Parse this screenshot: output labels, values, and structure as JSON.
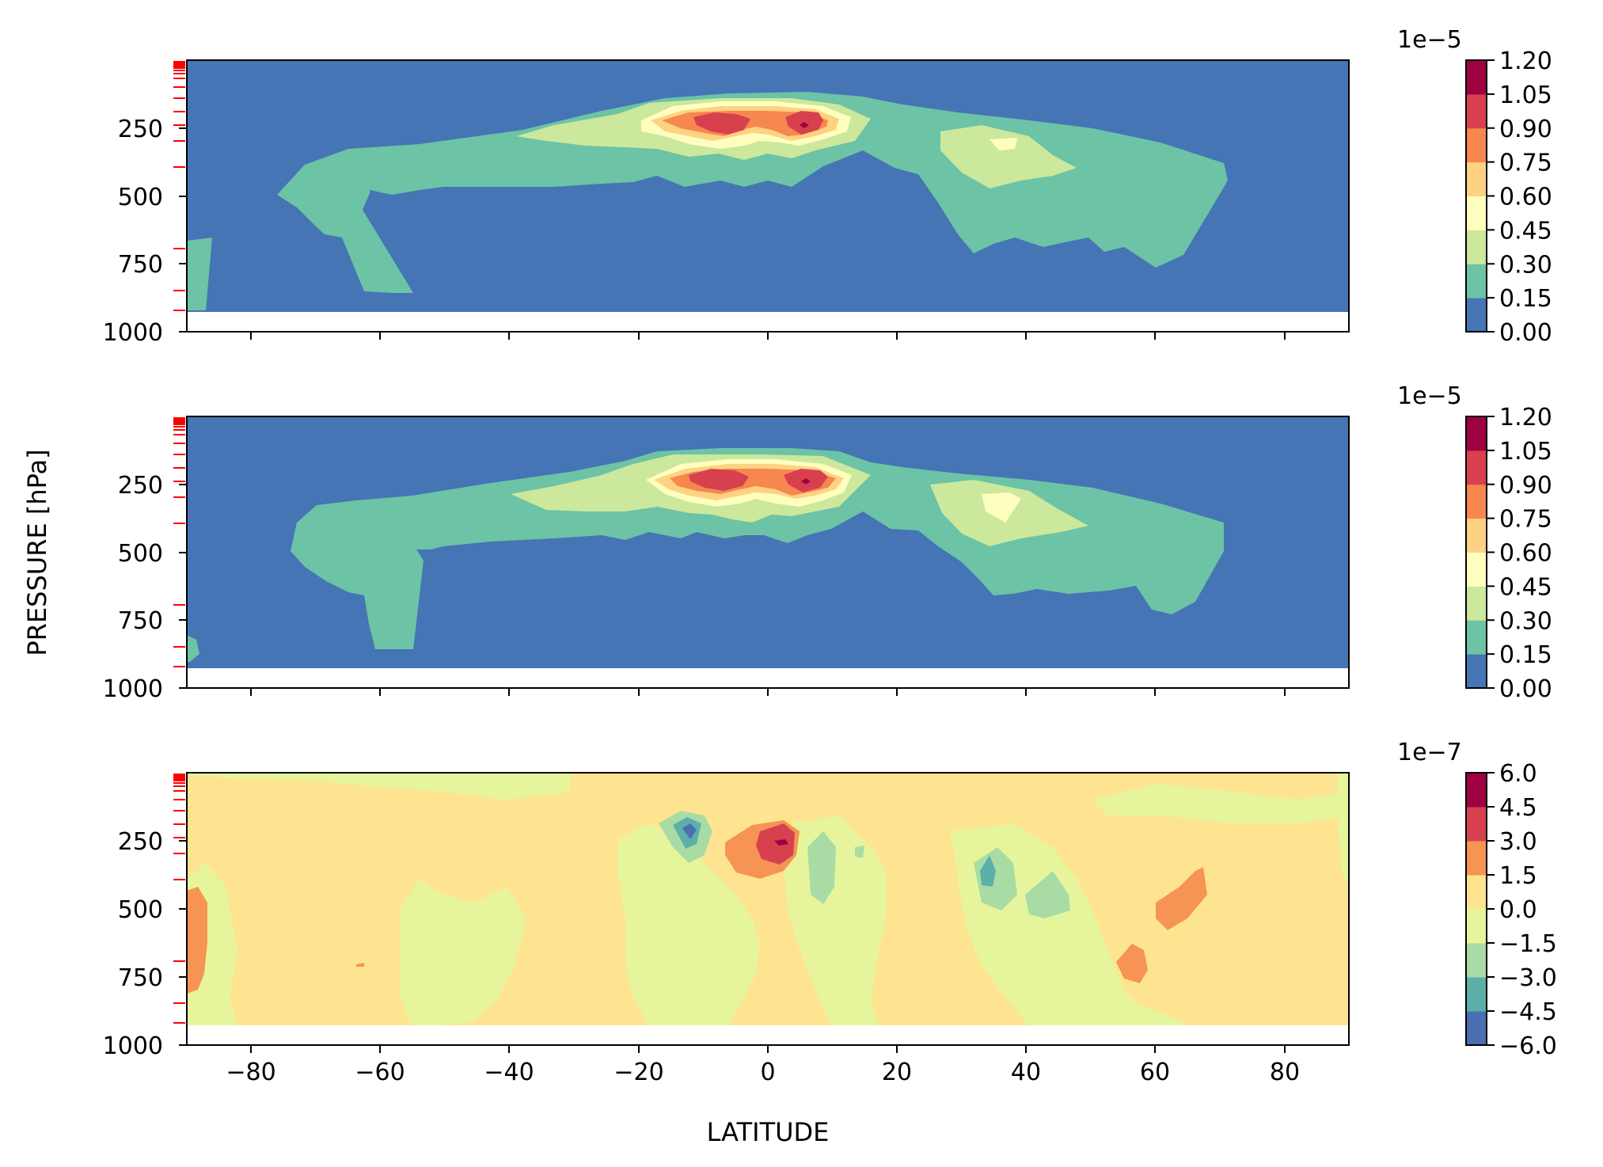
{
  "chart_data": [
    {
      "type": "heatmap",
      "panel": "top",
      "xlim": [
        -90,
        90
      ],
      "ylim": [
        1000,
        0
      ],
      "yticks": [
        "250",
        "500",
        "750",
        "1000"
      ],
      "xticks": [
        -80,
        -60,
        -40,
        -20,
        0,
        20,
        40,
        60,
        80
      ],
      "xtick_labels_shown": false,
      "data_bottom_pressure": 925,
      "model_levels_hPa": [
        7,
        10,
        15,
        20,
        30,
        50,
        70,
        100,
        150,
        200,
        250,
        300,
        400,
        700,
        850,
        925
      ],
      "levels_multiplier": "1e−5",
      "levels": [
        "0.00",
        "0.15",
        "0.30",
        "0.45",
        "0.60",
        "0.75",
        "0.90",
        "1.05",
        "1.20"
      ],
      "colors": [
        "#4575b4",
        "#6cc3a6",
        "#cbe89c",
        "#feffbe",
        "#fdd383",
        "#f6874f",
        "#d7414e",
        "#9e0142"
      ],
      "features": [
        {
          "band": "0.15–0.30",
          "lat_range": [
            -75,
            71
          ],
          "pressure_range": [
            130,
            800
          ]
        },
        {
          "band": "0.30–0.45",
          "lat_range": [
            -33,
            50
          ],
          "pressure_range": [
            180,
            420
          ]
        },
        {
          "band": "0.60–0.75",
          "lat_range": [
            -16,
            13
          ],
          "pressure_range": [
            200,
            320
          ]
        },
        {
          "band": "0.90–1.05",
          "center_lats": [
            -6,
            6
          ],
          "center_pressure": 250
        }
      ]
    },
    {
      "type": "heatmap",
      "panel": "middle",
      "xlim": [
        -90,
        90
      ],
      "ylim": [
        1000,
        0
      ],
      "yticks": [
        "250",
        "500",
        "750",
        "1000"
      ],
      "xticks": [
        -80,
        -60,
        -40,
        -20,
        0,
        20,
        40,
        60,
        80
      ],
      "xtick_labels_shown": false,
      "data_bottom_pressure": 925,
      "levels_multiplier": "1e−5",
      "levels": [
        "0.00",
        "0.15",
        "0.30",
        "0.45",
        "0.60",
        "0.75",
        "0.90",
        "1.05",
        "1.20"
      ],
      "colors": [
        "#4575b4",
        "#6cc3a6",
        "#cbe89c",
        "#feffbe",
        "#fdd383",
        "#f6874f",
        "#d7414e",
        "#9e0142"
      ],
      "features": [
        {
          "band": "0.15–0.30",
          "lat_range": [
            -74,
            71
          ],
          "pressure_range": [
            130,
            870
          ]
        },
        {
          "band": "0.30–0.45",
          "lat_range": [
            -34,
            50
          ],
          "pressure_range": [
            180,
            420
          ]
        },
        {
          "band": "0.60–0.75",
          "lat_range": [
            -16,
            12
          ],
          "pressure_range": [
            200,
            320
          ]
        },
        {
          "band": "0.90–1.05",
          "center_lats": [
            -6,
            6
          ],
          "center_pressure": 250
        }
      ]
    },
    {
      "type": "heatmap",
      "panel": "bottom",
      "xlim": [
        -90,
        90
      ],
      "ylim": [
        1000,
        0
      ],
      "yticks": [
        "250",
        "500",
        "750",
        "1000"
      ],
      "xticks": [
        -80,
        -60,
        -40,
        -20,
        0,
        20,
        40,
        60,
        80
      ],
      "xtick_labels": [
        "−80",
        "−60",
        "−40",
        "−20",
        "0",
        "20",
        "40",
        "60",
        "80"
      ],
      "xlabel": "LATITUDE",
      "data_bottom_pressure": 925,
      "levels_multiplier": "1e−7",
      "levels": [
        "−6.0",
        "−4.5",
        "−3.0",
        "−1.5",
        "0.0",
        "1.5",
        "3.0",
        "4.5",
        "6.0"
      ],
      "colors": [
        "#4a6fb0",
        "#5cb0aa",
        "#a9dca4",
        "#e6f59c",
        "#fee491",
        "#f69453",
        "#d7414e",
        "#9e0142"
      ],
      "features": [
        {
          "band": "3.0–4.5",
          "lat_range": [
            -7,
            4
          ],
          "pressure_range": [
            190,
            370
          ]
        },
        {
          "band": "−4.5–−3.0",
          "lat_range": [
            -15,
            -9
          ],
          "pressure_range": [
            180,
            290
          ]
        },
        {
          "band": "−3.0–−1.5",
          "lat_range": [
            32,
            38
          ],
          "pressure_range": [
            280,
            500
          ]
        },
        {
          "band": "1.5–3.0",
          "lat_range": [
            -90,
            -86
          ],
          "pressure_range": [
            430,
            780
          ]
        },
        {
          "band": "1.5–3.0",
          "lat_range": [
            60,
            67
          ],
          "pressure_range": [
            360,
            550
          ]
        }
      ]
    }
  ],
  "shared_ylabel": "PRESSURE [hPa]"
}
